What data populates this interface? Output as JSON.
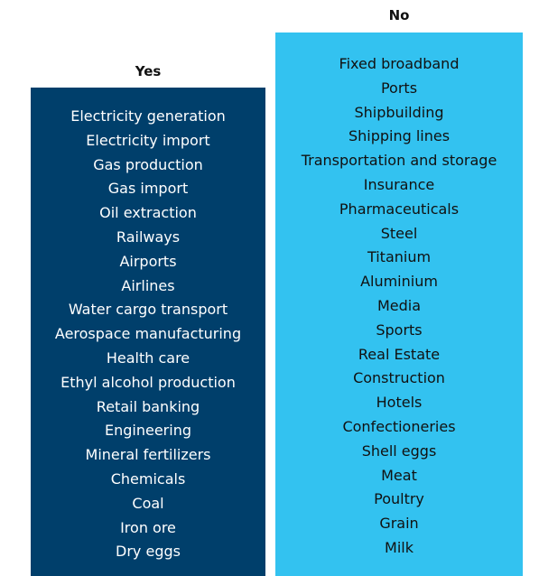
{
  "columns": [
    {
      "header": "Yes",
      "items": [
        "Electricity generation",
        "Electricity import",
        "Gas production",
        "Gas import",
        "Oil extraction",
        "Railways",
        "Airports",
        "Airlines",
        "Water cargo transport",
        "Aerospace manufacturing",
        "Health care",
        "Ethyl alcohol production",
        "Retail banking",
        "Engineering",
        "Mineral fertilizers",
        "Chemicals",
        "Coal",
        "Iron ore",
        "Dry eggs"
      ]
    },
    {
      "header": "No",
      "items": [
        "Fixed broadband",
        "Ports",
        "Shipbuilding",
        "Shipping lines",
        "Transportation and storage",
        "Insurance",
        "Pharmaceuticals",
        "Steel",
        "Titanium",
        "Aluminium",
        "Media",
        "Sports",
        "Real Estate",
        "Construction",
        "Hotels",
        "Confectioneries",
        "Shell eggs",
        "Meat",
        "Poultry",
        "Grain",
        "Milk"
      ]
    }
  ]
}
